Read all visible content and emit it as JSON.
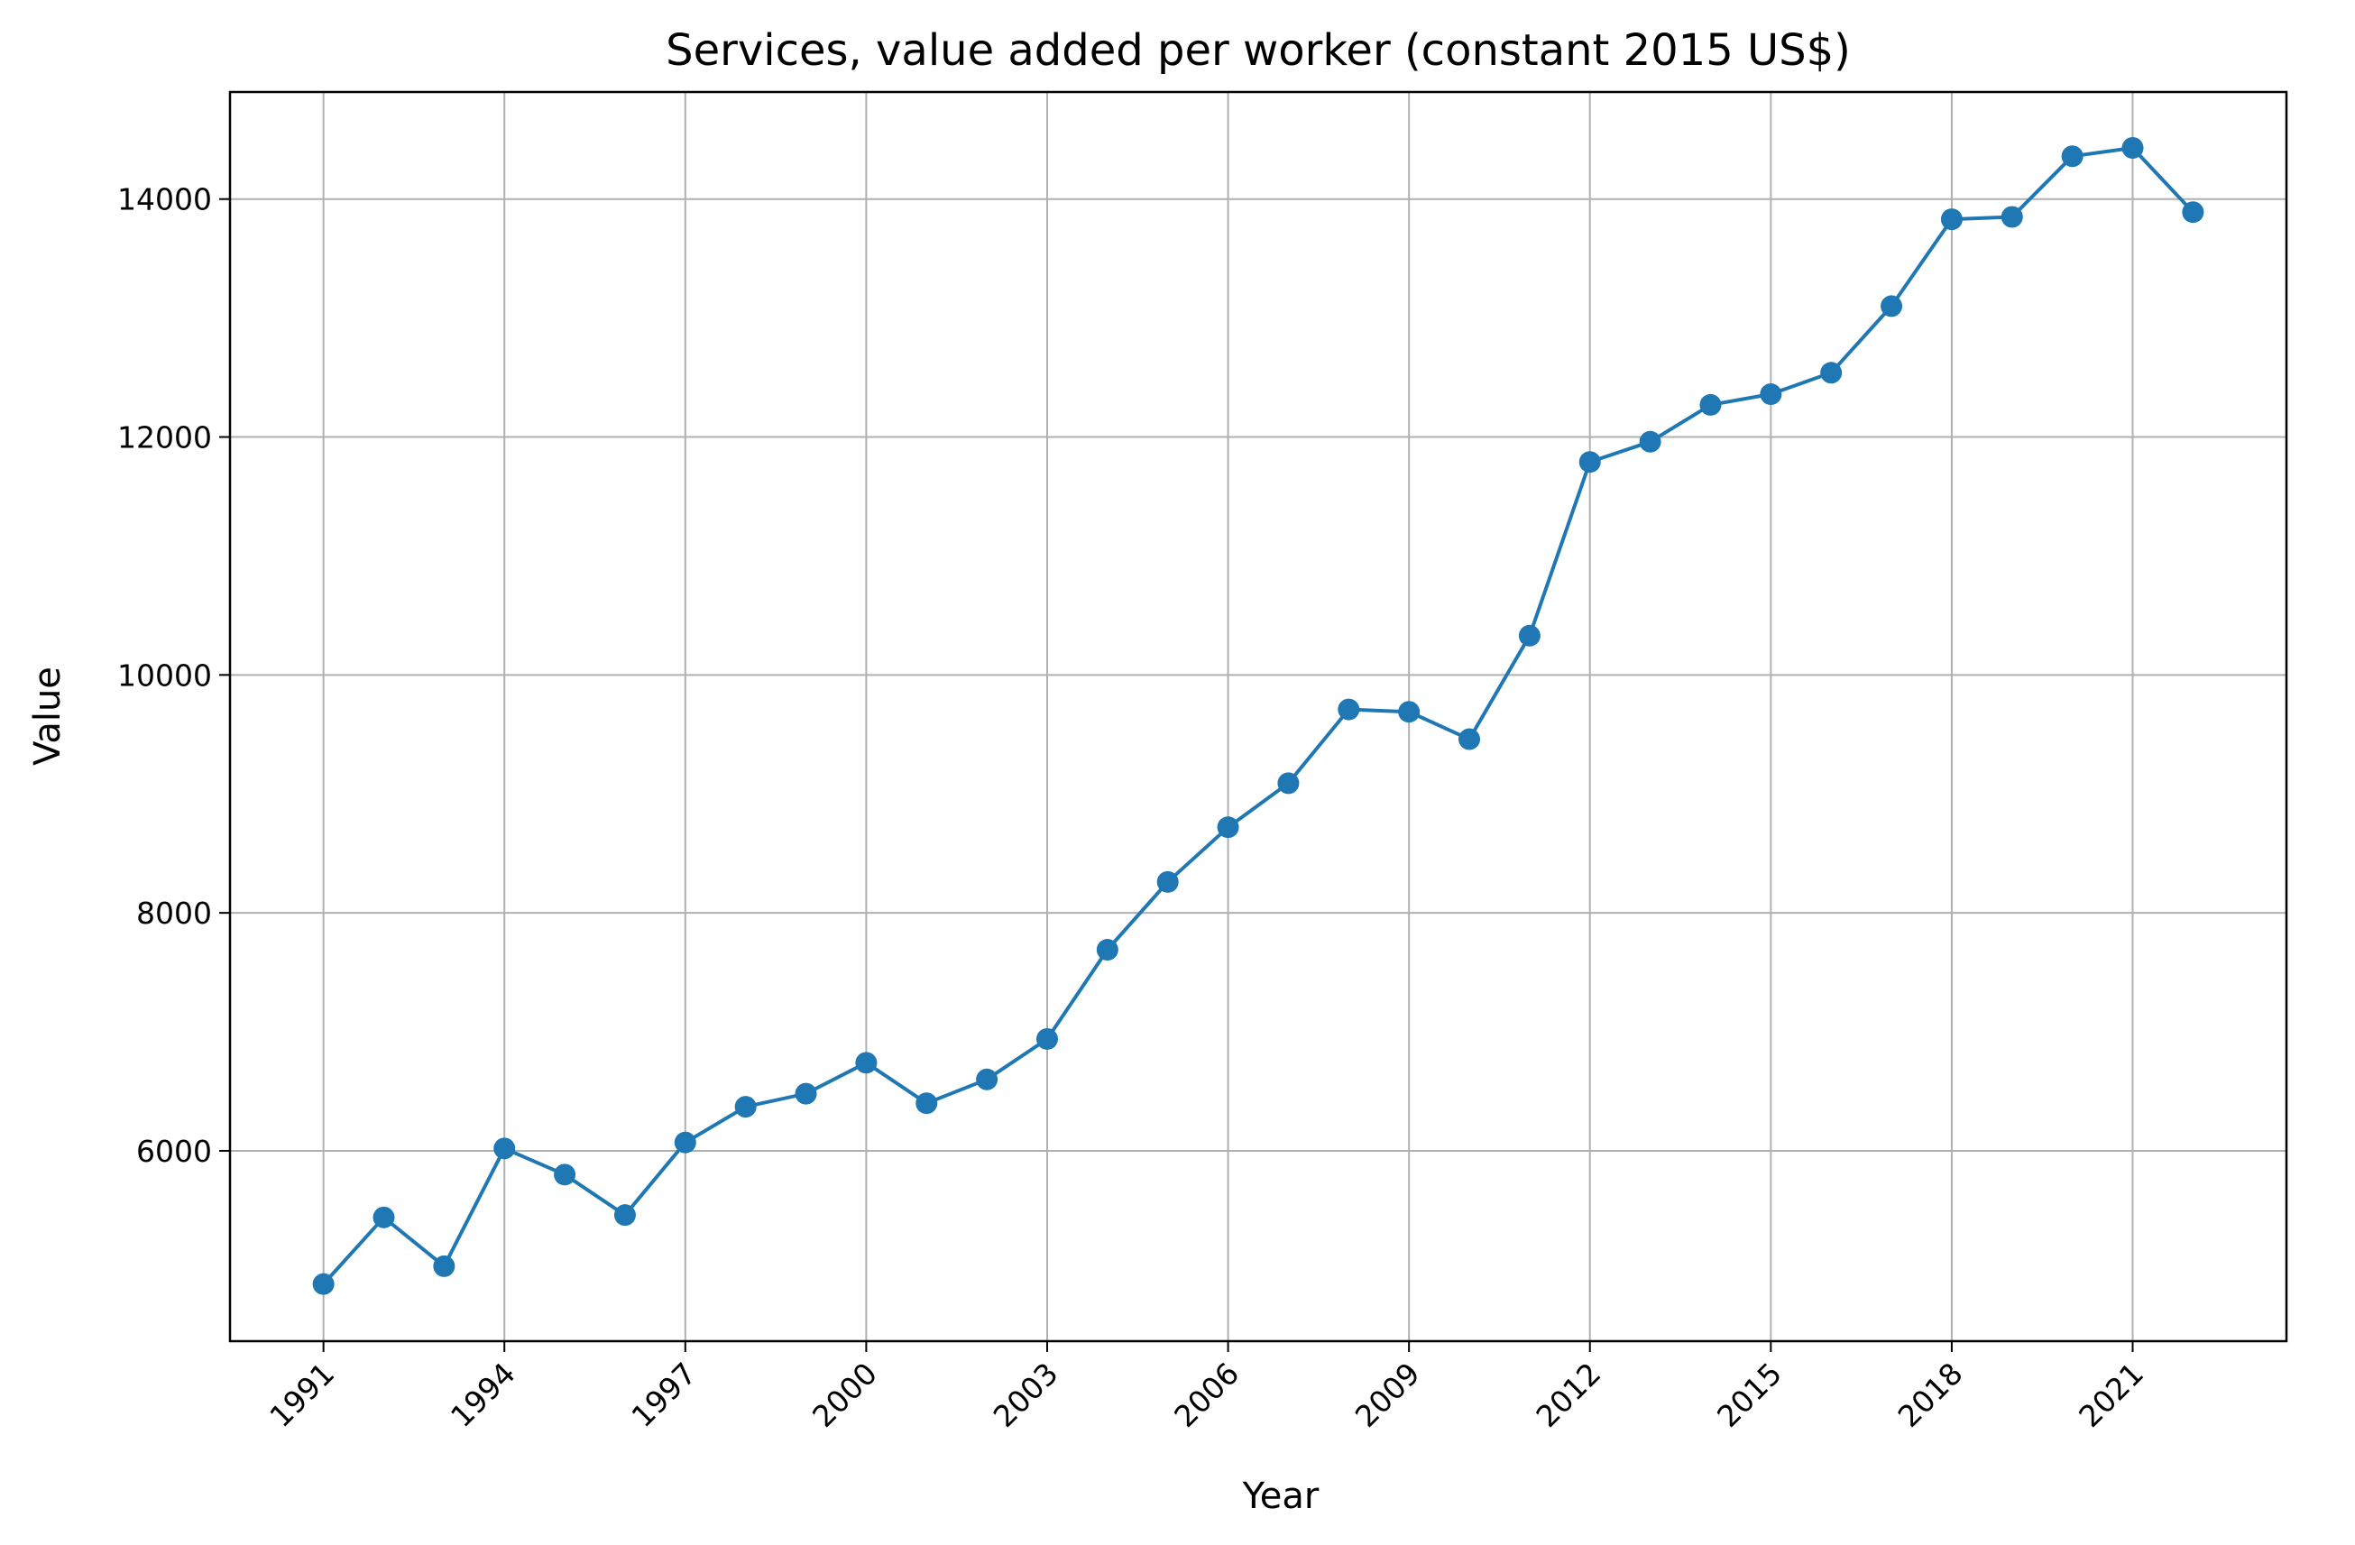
{
  "chart_data": {
    "type": "line",
    "title": "Services, value added per worker (constant 2015 US$)",
    "xlabel": "Year",
    "ylabel": "Value",
    "x": [
      1991,
      1992,
      1993,
      1994,
      1995,
      1996,
      1997,
      1998,
      1999,
      2000,
      2001,
      2002,
      2003,
      2004,
      2005,
      2006,
      2007,
      2008,
      2009,
      2010,
      2011,
      2012,
      2013,
      2014,
      2015,
      2016,
      2017,
      2018,
      2019,
      2020,
      2021,
      2022
    ],
    "series": [
      {
        "values": [
          4880,
          5440,
          5030,
          6020,
          5800,
          5460,
          6070,
          6370,
          6480,
          6740,
          6400,
          6600,
          6940,
          7690,
          8260,
          8720,
          9090,
          9710,
          9690,
          9460,
          10330,
          11790,
          11960,
          12270,
          12360,
          12540,
          13100,
          13830,
          13850,
          14360,
          14430,
          13890
        ],
        "color": "#1f77b4"
      }
    ],
    "xticks": [
      "1991",
      "1994",
      "1997",
      "2000",
      "2003",
      "2006",
      "2009",
      "2012",
      "2015",
      "2018",
      "2021"
    ],
    "yticks": [
      "6000",
      "8000",
      "10000",
      "12000",
      "14000"
    ],
    "xlim": [
      1989.45,
      2023.55
    ],
    "ylim": [
      4400,
      14900
    ],
    "grid": true,
    "marker": "circle"
  }
}
